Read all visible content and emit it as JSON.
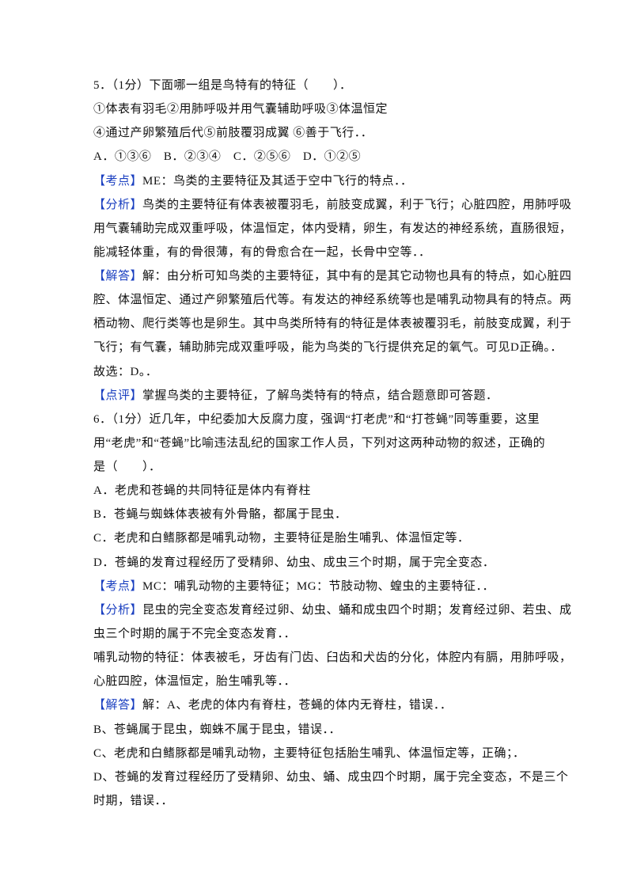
{
  "lines": [
    {
      "text": "5．（1分）下面哪一组是鸟特有的特征（　　）．"
    },
    {
      "text": "①体表有羽毛②用肺呼吸并用气囊辅助呼吸③体温恒定"
    },
    {
      "text": "④通过产卵繁殖后代⑤前肢覆羽成翼 ⑥善于飞行．．"
    },
    {
      "text": "A．①③⑥　B．②③④　C．②⑤⑥　D．①②⑤"
    },
    {
      "tag": "【考点】",
      "text": "ME：鸟类的主要特征及其适于空中飞行的特点．．"
    },
    {
      "tag": "【分析】",
      "text": "鸟类的主要特征有体表被覆羽毛，前肢变成翼，利于飞行；心脏四腔，用肺呼吸"
    },
    {
      "text": "用气囊辅助完成双重呼吸，体温恒定，体内受精，卵生，有发达的神经系统，直肠很短，"
    },
    {
      "text": "能减轻体重，有的骨很薄，有的骨愈合在一起，长骨中空等．．"
    },
    {
      "tag": "【解答】",
      "text": "解：由分析可知鸟类的主要特征，其中有的是其它动物也具有的特点，如心脏四"
    },
    {
      "text": "腔、体温恒定、通过产卵繁殖后代等。有发达的神经系统等也是哺乳动物具有的特点。两"
    },
    {
      "text": "栖动物、爬行类等也是卵生。其中鸟类所特有的特征是体表被覆羽毛，前肢变成翼，利于"
    },
    {
      "text": "飞行；有气囊，辅助肺完成双重呼吸，能为鸟类的飞行提供充足的氧气。可见D正确。．"
    },
    {
      "text": "故选：D。．"
    },
    {
      "tag": "【点评】",
      "text": "掌握鸟类的主要特征，了解鸟类特有的特点，结合题意即可答题．"
    },
    {
      "text": "6．（1分）近几年，中纪委加大反腐力度，强调“打老虎”和“打苍蝇”同等重要，这里"
    },
    {
      "text": "用“老虎”和“苍蝇”比喻违法乱纪的国家工作人员，下列对这两种动物的叙述，正确的"
    },
    {
      "text": "是（　　）．"
    },
    {
      "text": "A．老虎和苍蝇的共同特征是体内有脊柱"
    },
    {
      "text": "B．苍蝇与蜘蛛体表被有外骨骼，都属于昆虫．"
    },
    {
      "text": "C．老虎和白鳍豚都是哺乳动物，主要特征是胎生哺乳、体温恒定等．"
    },
    {
      "text": "D．苍蝇的发育过程经历了受精卵、幼虫、成虫三个时期，属于完全变态．"
    },
    {
      "tag": "【考点】",
      "text": "MC：哺乳动物的主要特征；MG：节肢动物、蝗虫的主要特征．．"
    },
    {
      "tag": "【分析】",
      "text": "昆虫的完全变态发育经过卵、幼虫、蛹和成虫四个时期；发育经过卵、若虫、成"
    },
    {
      "text": "虫三个时期的属于不完全变态发育．．"
    },
    {
      "text": "哺乳动物的特征：体表被毛，牙齿有门齿、臼齿和犬齿的分化，体腔内有膈，用肺呼吸，"
    },
    {
      "text": "心脏四腔，体温恒定，胎生哺乳等．．"
    },
    {
      "tag": "【解答】",
      "text": "解：A、老虎的体内有脊柱，苍蝇的体内无脊柱，错误．．"
    },
    {
      "text": "B、苍蝇属于昆虫，蜘蛛不属于昆虫，错误．．"
    },
    {
      "text": "C、老虎和白鳍豚都是哺乳动物，主要特征包括胎生哺乳、体温恒定等，正确；．"
    },
    {
      "text": "D、苍蝇的发育过程经历了受精卵、幼虫、蛹、成虫四个时期，属于完全变态，不是三个"
    },
    {
      "text": "时期，错误．．"
    }
  ]
}
